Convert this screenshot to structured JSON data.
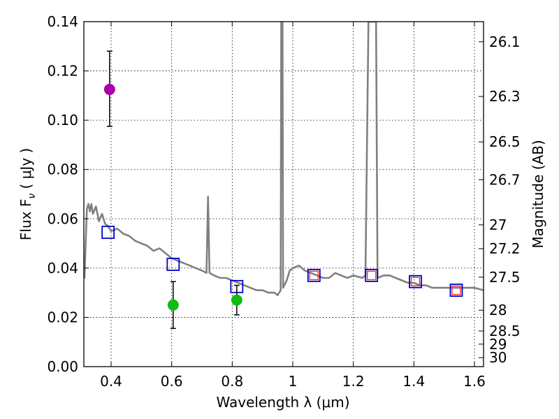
{
  "chart_data": {
    "type": "scatter",
    "xlabel": "Wavelength  λ (μm)",
    "ylabel": "Flux  F",
    "ylabel_sub": "ν",
    "ylabel_unit": "  ( μJy )",
    "y2label": "Magnitude (AB)",
    "xlim": [
      0.31,
      1.63
    ],
    "ylim": [
      0.0,
      0.14
    ],
    "grid": true,
    "x_ticks": [
      {
        "value": 0.4,
        "label": "0.4"
      },
      {
        "value": 0.6,
        "label": "0.6"
      },
      {
        "value": 0.8,
        "label": "0.8"
      },
      {
        "value": 1.0,
        "label": "1"
      },
      {
        "value": 1.2,
        "label": "1.2"
      },
      {
        "value": 1.4,
        "label": "1.4"
      },
      {
        "value": 1.6,
        "label": "1.6"
      }
    ],
    "y_ticks": [
      {
        "value": 0.0,
        "label": "0.00"
      },
      {
        "value": 0.02,
        "label": "0.02"
      },
      {
        "value": 0.04,
        "label": "0.04"
      },
      {
        "value": 0.06,
        "label": "0.06"
      },
      {
        "value": 0.08,
        "label": "0.08"
      },
      {
        "value": 0.1,
        "label": "0.10"
      },
      {
        "value": 0.12,
        "label": "0.12"
      },
      {
        "value": 0.14,
        "label": "0.14"
      }
    ],
    "mag_ticks": [
      {
        "value": 26.1,
        "label": "26.1"
      },
      {
        "value": 26.3,
        "label": "26.3"
      },
      {
        "value": 26.5,
        "label": "26.5"
      },
      {
        "value": 26.7,
        "label": "26.7"
      },
      {
        "value": 27.0,
        "label": "27"
      },
      {
        "value": 27.2,
        "label": "27.2"
      },
      {
        "value": 27.5,
        "label": "27.5"
      },
      {
        "value": 28.0,
        "label": "28"
      },
      {
        "value": 28.5,
        "label": "28.5"
      },
      {
        "value": 29.0,
        "label": "29"
      },
      {
        "value": 30.0,
        "label": "30"
      }
    ],
    "colors": {
      "sed": "#808080",
      "model_box": "#0000cc",
      "obs_box": "#ee3333",
      "magenta": "#aa00aa",
      "green": "#11bb11",
      "errorbar": "#000000"
    },
    "sed_model": [
      [
        0.31,
        0.038
      ],
      [
        0.312,
        0.036
      ],
      [
        0.316,
        0.05
      ],
      [
        0.32,
        0.064
      ],
      [
        0.325,
        0.066
      ],
      [
        0.33,
        0.063
      ],
      [
        0.335,
        0.066
      ],
      [
        0.34,
        0.062
      ],
      [
        0.35,
        0.065
      ],
      [
        0.36,
        0.059
      ],
      [
        0.37,
        0.062
      ],
      [
        0.38,
        0.058
      ],
      [
        0.39,
        0.057
      ],
      [
        0.4,
        0.055
      ],
      [
        0.42,
        0.056
      ],
      [
        0.44,
        0.054
      ],
      [
        0.46,
        0.053
      ],
      [
        0.48,
        0.051
      ],
      [
        0.5,
        0.05
      ],
      [
        0.52,
        0.049
      ],
      [
        0.54,
        0.047
      ],
      [
        0.56,
        0.048
      ],
      [
        0.58,
        0.046
      ],
      [
        0.6,
        0.044
      ],
      [
        0.62,
        0.043
      ],
      [
        0.64,
        0.042
      ],
      [
        0.66,
        0.041
      ],
      [
        0.68,
        0.04
      ],
      [
        0.7,
        0.039
      ],
      [
        0.715,
        0.038
      ],
      [
        0.72,
        0.069
      ],
      [
        0.725,
        0.038
      ],
      [
        0.74,
        0.037
      ],
      [
        0.76,
        0.036
      ],
      [
        0.78,
        0.036
      ],
      [
        0.8,
        0.035
      ],
      [
        0.82,
        0.034
      ],
      [
        0.84,
        0.033
      ],
      [
        0.86,
        0.032
      ],
      [
        0.88,
        0.031
      ],
      [
        0.9,
        0.031
      ],
      [
        0.92,
        0.03
      ],
      [
        0.94,
        0.03
      ],
      [
        0.95,
        0.029
      ],
      [
        0.96,
        0.031
      ],
      [
        0.962,
        0.14
      ],
      [
        0.966,
        0.14
      ],
      [
        0.968,
        0.032
      ],
      [
        0.98,
        0.035
      ],
      [
        0.99,
        0.039
      ],
      [
        1.0,
        0.04
      ],
      [
        1.02,
        0.041
      ],
      [
        1.04,
        0.039
      ],
      [
        1.06,
        0.038
      ],
      [
        1.08,
        0.037
      ],
      [
        1.1,
        0.036
      ],
      [
        1.12,
        0.036
      ],
      [
        1.14,
        0.038
      ],
      [
        1.16,
        0.037
      ],
      [
        1.18,
        0.036
      ],
      [
        1.2,
        0.037
      ],
      [
        1.23,
        0.036
      ],
      [
        1.24,
        0.037
      ],
      [
        1.25,
        0.14
      ],
      [
        1.275,
        0.14
      ],
      [
        1.28,
        0.036
      ],
      [
        1.3,
        0.037
      ],
      [
        1.32,
        0.037
      ],
      [
        1.34,
        0.036
      ],
      [
        1.36,
        0.035
      ],
      [
        1.38,
        0.034
      ],
      [
        1.4,
        0.034
      ],
      [
        1.42,
        0.033
      ],
      [
        1.44,
        0.033
      ],
      [
        1.46,
        0.032
      ],
      [
        1.48,
        0.032
      ],
      [
        1.5,
        0.032
      ],
      [
        1.52,
        0.032
      ],
      [
        1.54,
        0.032
      ],
      [
        1.56,
        0.032
      ],
      [
        1.58,
        0.032
      ],
      [
        1.6,
        0.032
      ],
      [
        1.63,
        0.031
      ]
    ],
    "model_photometry": [
      {
        "x": 0.39,
        "y": 0.0545
      },
      {
        "x": 0.605,
        "y": 0.0415
      },
      {
        "x": 0.815,
        "y": 0.0325
      },
      {
        "x": 1.07,
        "y": 0.037
      },
      {
        "x": 1.26,
        "y": 0.037
      },
      {
        "x": 1.405,
        "y": 0.0345
      },
      {
        "x": 1.54,
        "y": 0.031
      }
    ],
    "observed_nir": [
      {
        "x": 1.07,
        "y": 0.037
      },
      {
        "x": 1.26,
        "y": 0.037
      },
      {
        "x": 1.405,
        "y": 0.0345
      },
      {
        "x": 1.54,
        "y": 0.031
      }
    ],
    "observed_points": [
      {
        "x": 0.395,
        "y": 0.1125,
        "err_lo": 0.0975,
        "err_hi": 0.128,
        "color": "magenta"
      },
      {
        "x": 0.605,
        "y": 0.025,
        "err_lo": 0.0155,
        "err_hi": 0.0345,
        "color": "green"
      },
      {
        "x": 0.815,
        "y": 0.027,
        "err_lo": 0.021,
        "err_hi": 0.033,
        "color": "green"
      }
    ]
  }
}
